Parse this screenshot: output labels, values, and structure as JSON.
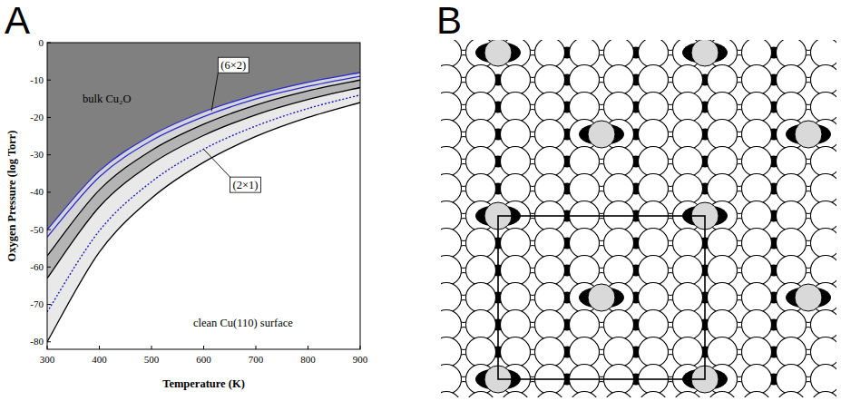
{
  "chart_data": {
    "type": "line",
    "panel_label": "A",
    "xlabel": "Temperature (K)",
    "ylabel": "Oxygen Pressure (log Torr)",
    "x": [
      300,
      400,
      500,
      600,
      700,
      800,
      900
    ],
    "xlim": [
      300,
      900
    ],
    "xticks": [
      300,
      400,
      500,
      600,
      700,
      800,
      900
    ],
    "ylim": [
      -82,
      0
    ],
    "yticks": [
      -80,
      -70,
      -60,
      -50,
      -40,
      -30,
      -20,
      -10,
      0
    ],
    "grid": false,
    "series": [
      {
        "type": "area",
        "color": "#e9e9e9",
        "values": [
          -80,
          -56,
          -41.6,
          -32,
          -25.1,
          -20,
          -16
        ]
      },
      {
        "type": "area",
        "color": "#b4b4b4",
        "values": [
          -63,
          -43.9,
          -32.4,
          -24.8,
          -19.3,
          -15.2,
          -12
        ]
      },
      {
        "type": "area",
        "color": "#d6d6d6",
        "values": [
          -57,
          -39.4,
          -28.8,
          -21.8,
          -16.7,
          -12.9,
          -10
        ]
      },
      {
        "type": "area",
        "color": "#808080",
        "values": [
          -50,
          -34.3,
          -24.8,
          -18.5,
          -14,
          -10.6,
          -8
        ]
      },
      {
        "type": "line",
        "color": "#000000",
        "line_style": "solid",
        "values": [
          -80,
          -56,
          -41.6,
          -32,
          -25.1,
          -20,
          -16
        ]
      },
      {
        "type": "line",
        "color": "#1f1fbf",
        "line_style": "dotted",
        "values": [
          -72,
          -50.3,
          -37.2,
          -28.5,
          -22.3,
          -17.6,
          -14
        ]
      },
      {
        "type": "line",
        "color": "#000000",
        "line_style": "solid",
        "values": [
          -63,
          -43.9,
          -32.4,
          -24.8,
          -19.3,
          -15.2,
          -12
        ]
      },
      {
        "type": "line",
        "color": "#000000",
        "line_style": "solid",
        "values": [
          -57,
          -39.4,
          -28.8,
          -21.8,
          -16.7,
          -12.9,
          -10
        ]
      },
      {
        "type": "line",
        "color": "#2b2bd0",
        "line_style": "solid",
        "values": [
          -52,
          -35.9,
          -26.2,
          -19.8,
          -15.1,
          -11.7,
          -9
        ]
      },
      {
        "type": "line",
        "color": "#2b2bd0",
        "line_style": "solid",
        "values": [
          -50,
          -34.3,
          -24.8,
          -18.5,
          -14,
          -10.6,
          -8
        ]
      }
    ],
    "annotations": [
      {
        "text": "bulk Cu₂O",
        "x": 368,
        "y": -15
      },
      {
        "text": "(6×2)",
        "x": 657,
        "y": -6,
        "arrow_x": 615,
        "arrow_y": -18.3
      },
      {
        "text": "(2×1)",
        "x": 680,
        "y": -38,
        "arrow_x": 600,
        "arrow_y": -28.5
      },
      {
        "text": "clean Cu(110) surface",
        "x": 580,
        "y": -75
      }
    ]
  },
  "diagram": {
    "panel_label": "B"
  }
}
